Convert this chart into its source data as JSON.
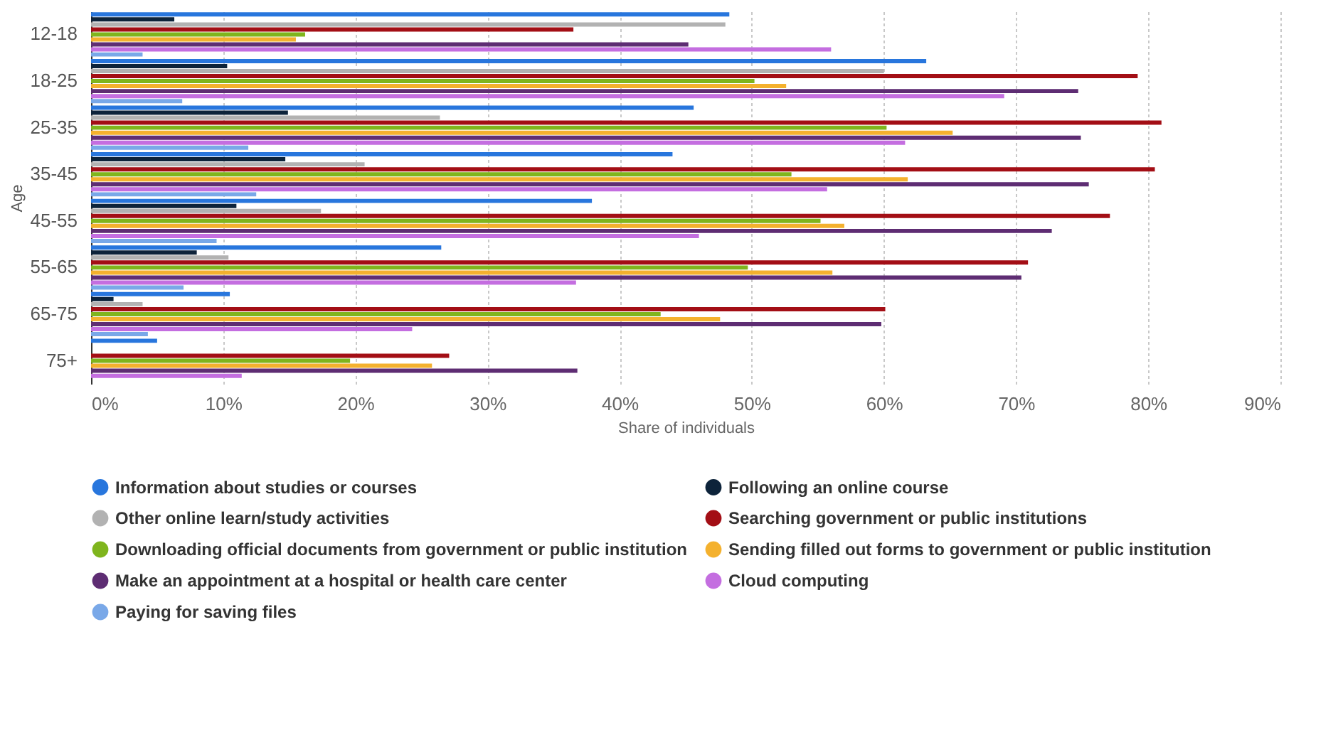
{
  "chart_data": {
    "type": "bar",
    "orientation": "horizontal",
    "ylabel": "Age",
    "xlabel": "Share of individuals",
    "categories": [
      "12-18",
      "18-25",
      "25-35",
      "35-45",
      "45-55",
      "55-65",
      "65-75",
      "75+"
    ],
    "series": [
      {
        "name": "Information about studies or courses",
        "color": "#2876dd",
        "values": [
          48.3,
          63.2,
          45.6,
          44,
          37.9,
          26.5,
          10.5,
          5.0
        ]
      },
      {
        "name": "Following an online course",
        "color": "#0d233a",
        "values": [
          6.3,
          10.3,
          14.9,
          14.7,
          11.0,
          8.0,
          1.7,
          null
        ]
      },
      {
        "name": "Other online learn/study activities",
        "color": "#b2b2b2",
        "values": [
          48,
          60,
          26.4,
          20.7,
          17.4,
          10.4,
          3.9,
          null
        ]
      },
      {
        "name": "Searching government or public institutions",
        "color": "#a30e15",
        "values": [
          36.5,
          79.2,
          81,
          80.5,
          77.1,
          70.9,
          60.1,
          27.1
        ]
      },
      {
        "name": "Downloading official documents from government or public institution",
        "color": "#7fb51d",
        "values": [
          16.2,
          50.2,
          60.2,
          53,
          55.2,
          49.7,
          43.1,
          19.6
        ]
      },
      {
        "name": "Sending filled out forms to government or public institution",
        "color": "#f4b12e",
        "values": [
          15.5,
          52.6,
          65.2,
          61.8,
          57.0,
          56.1,
          47.6,
          25.8
        ]
      },
      {
        "name": "Make an appointment at a hospital or health care center",
        "color": "#5e2d73",
        "values": [
          45.2,
          74.7,
          74.9,
          75.5,
          72.7,
          70.4,
          59.8,
          36.8
        ]
      },
      {
        "name": "Cloud computing",
        "color": "#c46ee0",
        "values": [
          56,
          69.1,
          61.6,
          55.7,
          46.0,
          36.7,
          24.3,
          11.4
        ]
      },
      {
        "name": "Paying for saving files",
        "color": "#79a8e8",
        "values": [
          3.9,
          6.9,
          11.9,
          12.5,
          9.5,
          7.0,
          4.3,
          null
        ]
      }
    ],
    "xlim": [
      0,
      90
    ],
    "xticks": [
      {
        "value": 0,
        "label": "0%"
      },
      {
        "value": 10,
        "label": "10%"
      },
      {
        "value": 20,
        "label": "20%"
      },
      {
        "value": 30,
        "label": "30%"
      },
      {
        "value": 40,
        "label": "40%"
      },
      {
        "value": 50,
        "label": "50%"
      },
      {
        "value": 60,
        "label": "60%"
      },
      {
        "value": 70,
        "label": "70%"
      },
      {
        "value": 80,
        "label": "80%"
      },
      {
        "value": 90,
        "label": "90%"
      }
    ],
    "grid": "x",
    "legend": "bottom"
  }
}
